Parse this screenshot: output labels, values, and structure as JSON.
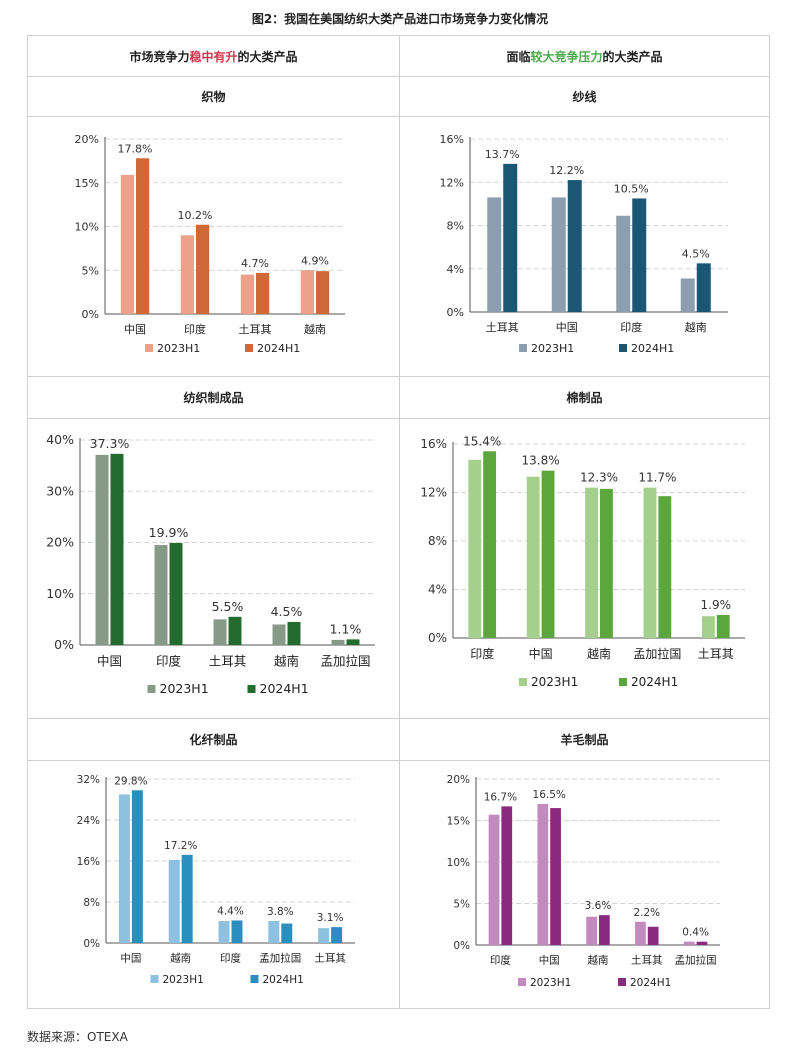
{
  "figure_title": "图2：我国在美国纺织大类产品进口市场竞争力变化情况",
  "header_left": {
    "pre": "市场竞争力",
    "highlight": "稳中有升",
    "post": "的大类产品"
  },
  "header_right": {
    "pre": "面临",
    "highlight": "较大竞争压力",
    "post": "的大类产品"
  },
  "footnote": "数据来源：OTEXA",
  "chart_data": [
    {
      "title": "织物",
      "type": "bar",
      "categories": [
        "中国",
        "印度",
        "土耳其",
        "越南"
      ],
      "series": [
        {
          "name": "2023H1",
          "values": [
            15.9,
            9.0,
            4.5,
            5.0
          ],
          "color": "#eba18a"
        },
        {
          "name": "2024H1",
          "values": [
            17.8,
            10.2,
            4.7,
            4.9
          ],
          "color": "#cf6a38"
        }
      ],
      "labels": [
        "17.8%",
        "10.2%",
        "4.7%",
        "4.9%"
      ],
      "ylim": [
        0,
        20
      ],
      "yticks": [
        "0%",
        "5%",
        "10%",
        "15%",
        "20%"
      ],
      "legend": "bottom"
    },
    {
      "title": "纱线",
      "type": "bar",
      "categories": [
        "土耳其",
        "中国",
        "印度",
        "越南"
      ],
      "series": [
        {
          "name": "2023H1",
          "values": [
            10.6,
            10.6,
            8.9,
            3.1
          ],
          "color": "#8d9eae"
        },
        {
          "name": "2024H1",
          "values": [
            13.7,
            12.2,
            10.5,
            4.5
          ],
          "color": "#1b5674"
        }
      ],
      "labels": [
        "13.7%",
        "12.2%",
        "10.5%",
        "4.5%"
      ],
      "ylim": [
        0,
        16
      ],
      "yticks": [
        "0%",
        "4%",
        "8%",
        "12%",
        "16%"
      ],
      "legend": "bottom"
    },
    {
      "title": "纺织制成品",
      "type": "bar",
      "categories": [
        "中国",
        "印度",
        "土耳其",
        "越南",
        "孟加拉国"
      ],
      "series": [
        {
          "name": "2023H1",
          "values": [
            37.1,
            19.5,
            5.0,
            4.0,
            1.0
          ],
          "color": "#879a87"
        },
        {
          "name": "2024H1",
          "values": [
            37.3,
            19.9,
            5.5,
            4.5,
            1.1
          ],
          "color": "#236b2e"
        }
      ],
      "labels": [
        "37.3%",
        "19.9%",
        "5.5%",
        "4.5%",
        "1.1%"
      ],
      "ylim": [
        0,
        40
      ],
      "yticks": [
        "0%",
        "10%",
        "20%",
        "30%",
        "40%"
      ],
      "legend": "bottom"
    },
    {
      "title": "棉制品",
      "type": "bar",
      "categories": [
        "印度",
        "中国",
        "越南",
        "孟加拉国",
        "土耳其"
      ],
      "series": [
        {
          "name": "2023H1",
          "values": [
            14.7,
            13.3,
            12.4,
            12.4,
            1.8
          ],
          "color": "#a4cf8c"
        },
        {
          "name": "2024H1",
          "values": [
            15.4,
            13.8,
            12.3,
            11.7,
            1.9
          ],
          "color": "#5ba73d"
        }
      ],
      "labels": [
        "15.4%",
        "13.8%",
        "12.3%",
        "11.7%",
        "1.9%"
      ],
      "ylim": [
        0,
        16
      ],
      "yticks": [
        "0%",
        "4%",
        "8%",
        "12%",
        "16%"
      ],
      "legend": "bottom"
    },
    {
      "title": "化纤制品",
      "type": "bar",
      "categories": [
        "中国",
        "越南",
        "印度",
        "孟加拉国",
        "土耳其"
      ],
      "series": [
        {
          "name": "2023H1",
          "values": [
            29.0,
            16.2,
            4.3,
            4.3,
            2.9
          ],
          "color": "#8ec0df"
        },
        {
          "name": "2024H1",
          "values": [
            29.8,
            17.2,
            4.4,
            3.8,
            3.1
          ],
          "color": "#2a8fbf"
        }
      ],
      "labels": [
        "29.8%",
        "17.2%",
        "4.4%",
        "3.8%",
        "3.1%"
      ],
      "ylim": [
        0,
        32
      ],
      "yticks": [
        "0%",
        "8%",
        "16%",
        "24%",
        "32%"
      ],
      "legend": "bottom"
    },
    {
      "title": "羊毛制品",
      "type": "bar",
      "categories": [
        "印度",
        "中国",
        "越南",
        "土耳其",
        "孟加拉国"
      ],
      "series": [
        {
          "name": "2023H1",
          "values": [
            15.7,
            17.0,
            3.4,
            2.8,
            0.4
          ],
          "color": "#c38ac0"
        },
        {
          "name": "2024H1",
          "values": [
            16.7,
            16.5,
            3.6,
            2.2,
            0.4
          ],
          "color": "#8a2a7f"
        }
      ],
      "labels": [
        "16.7%",
        "16.5%",
        "3.6%",
        "2.2%",
        "0.4%"
      ],
      "ylim": [
        0,
        20
      ],
      "yticks": [
        "0%",
        "5%",
        "10%",
        "15%",
        "20%"
      ],
      "legend": "bottom"
    }
  ]
}
